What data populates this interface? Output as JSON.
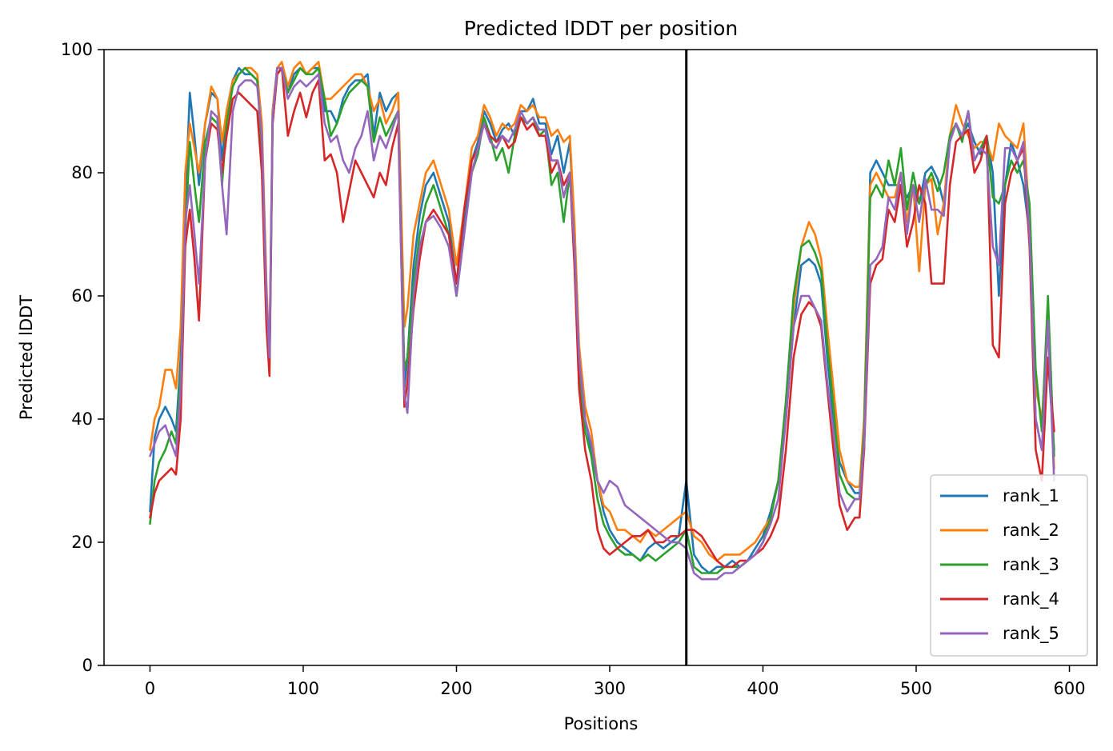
{
  "chart_data": {
    "type": "line",
    "title": "Predicted lDDT per position",
    "xlabel": "Positions",
    "ylabel": "Predicted lDDT",
    "xlim": [
      -30,
      618
    ],
    "ylim": [
      0,
      100
    ],
    "xticks": [
      "0",
      "100",
      "200",
      "300",
      "400",
      "500",
      "600"
    ],
    "yticks": [
      "0",
      "20",
      "40",
      "60",
      "80",
      "100"
    ],
    "grid": false,
    "legend_position": "lower-right",
    "vline_x": 350,
    "x_knots": [
      0,
      3,
      6,
      10,
      14,
      17,
      20,
      23,
      26,
      29,
      32,
      36,
      40,
      44,
      47,
      50,
      54,
      58,
      62,
      66,
      70,
      73,
      76,
      78,
      80,
      83,
      86,
      90,
      94,
      98,
      102,
      106,
      110,
      114,
      118,
      122,
      126,
      130,
      134,
      138,
      142,
      146,
      150,
      154,
      158,
      162,
      164,
      166,
      168,
      172,
      176,
      180,
      185,
      190,
      195,
      200,
      205,
      210,
      214,
      218,
      222,
      226,
      230,
      234,
      238,
      242,
      246,
      250,
      254,
      258,
      262,
      266,
      270,
      274,
      277,
      280,
      284,
      288,
      292,
      296,
      300,
      305,
      310,
      315,
      320,
      325,
      330,
      335,
      340,
      345,
      350,
      355,
      360,
      365,
      370,
      375,
      380,
      385,
      390,
      395,
      400,
      405,
      410,
      415,
      420,
      425,
      430,
      434,
      438,
      442,
      446,
      450,
      455,
      460,
      463,
      466,
      470,
      474,
      478,
      482,
      486,
      490,
      494,
      498,
      502,
      506,
      510,
      514,
      518,
      522,
      526,
      530,
      534,
      538,
      542,
      546,
      550,
      554,
      558,
      562,
      566,
      570,
      574,
      578,
      582,
      586,
      590
    ],
    "series": [
      {
        "name": "rank_1",
        "color": "#1f77b4",
        "values": [
          25,
          37,
          40,
          42,
          40,
          38,
          50,
          75,
          93,
          86,
          78,
          88,
          93,
          92,
          82,
          90,
          95,
          97,
          96,
          96,
          95,
          85,
          60,
          50,
          90,
          97,
          97,
          93,
          96,
          97,
          96,
          97,
          97,
          90,
          90,
          88,
          92,
          94,
          95,
          95,
          96,
          86,
          93,
          90,
          92,
          93,
          70,
          45,
          50,
          65,
          73,
          78,
          80,
          76,
          72,
          62,
          72,
          82,
          85,
          90,
          88,
          85,
          87,
          88,
          86,
          90,
          90,
          92,
          88,
          88,
          83,
          86,
          80,
          85,
          70,
          50,
          40,
          35,
          30,
          25,
          22,
          20,
          19,
          18,
          17,
          19,
          20,
          19,
          20,
          21,
          30,
          18,
          16,
          15,
          16,
          16,
          17,
          16,
          17,
          19,
          21,
          25,
          30,
          40,
          55,
          65,
          66,
          65,
          62,
          50,
          40,
          33,
          30,
          28,
          28,
          35,
          80,
          82,
          80,
          78,
          78,
          78,
          76,
          78,
          75,
          80,
          81,
          79,
          75,
          85,
          88,
          86,
          88,
          85,
          83,
          86,
          80,
          60,
          78,
          85,
          82,
          78,
          70,
          40,
          35,
          50,
          35
        ]
      },
      {
        "name": "rank_2",
        "color": "#ff7f0e",
        "values": [
          35,
          40,
          42,
          48,
          48,
          45,
          55,
          80,
          88,
          84,
          80,
          88,
          94,
          92,
          85,
          90,
          95,
          96,
          97,
          97,
          96,
          88,
          62,
          50,
          90,
          97,
          98,
          94,
          97,
          98,
          96,
          97,
          98,
          92,
          92,
          93,
          94,
          95,
          96,
          96,
          94,
          90,
          92,
          88,
          90,
          93,
          74,
          55,
          58,
          70,
          75,
          80,
          82,
          78,
          74,
          65,
          74,
          84,
          86,
          91,
          89,
          86,
          88,
          87,
          88,
          91,
          90,
          91,
          89,
          89,
          86,
          87,
          85,
          86,
          72,
          52,
          42,
          38,
          30,
          26,
          25,
          22,
          22,
          21,
          20,
          22,
          21,
          22,
          23,
          24,
          25,
          21,
          20,
          18,
          17,
          18,
          18,
          18,
          19,
          20,
          22,
          24,
          30,
          42,
          58,
          68,
          72,
          70,
          66,
          55,
          45,
          35,
          30,
          29,
          29,
          40,
          78,
          80,
          78,
          76,
          76,
          80,
          72,
          78,
          64,
          78,
          79,
          70,
          75,
          86,
          91,
          88,
          86,
          84,
          85,
          85,
          82,
          88,
          86,
          85,
          84,
          88,
          72,
          45,
          40,
          55,
          32
        ]
      },
      {
        "name": "rank_3",
        "color": "#2ca02c",
        "values": [
          23,
          30,
          33,
          35,
          38,
          36,
          48,
          70,
          85,
          78,
          72,
          85,
          89,
          88,
          78,
          88,
          94,
          96,
          97,
          96,
          95,
          84,
          58,
          48,
          88,
          96,
          97,
          93,
          95,
          97,
          96,
          96,
          97,
          92,
          86,
          88,
          91,
          93,
          94,
          95,
          94,
          85,
          89,
          86,
          88,
          90,
          68,
          48,
          50,
          62,
          70,
          75,
          78,
          74,
          70,
          60,
          70,
          80,
          83,
          89,
          86,
          82,
          84,
          80,
          86,
          89,
          88,
          89,
          86,
          87,
          78,
          80,
          72,
          80,
          68,
          48,
          38,
          34,
          27,
          23,
          21,
          19,
          18,
          18,
          17,
          18,
          17,
          18,
          19,
          20,
          22,
          16,
          15,
          15,
          15,
          16,
          16,
          16,
          17,
          18,
          20,
          24,
          30,
          43,
          60,
          68,
          69,
          67,
          64,
          52,
          42,
          31,
          28,
          27,
          27,
          38,
          76,
          78,
          76,
          82,
          78,
          84,
          74,
          80,
          75,
          78,
          80,
          77,
          80,
          86,
          88,
          85,
          90,
          82,
          84,
          86,
          76,
          75,
          78,
          82,
          80,
          82,
          75,
          48,
          38,
          60,
          34
        ]
      },
      {
        "name": "rank_4",
        "color": "#d62728",
        "values": [
          24,
          28,
          30,
          31,
          32,
          31,
          40,
          68,
          74,
          66,
          56,
          82,
          88,
          87,
          80,
          86,
          92,
          93,
          92,
          91,
          90,
          80,
          55,
          47,
          88,
          96,
          97,
          86,
          90,
          93,
          89,
          93,
          95,
          82,
          83,
          80,
          72,
          77,
          82,
          80,
          78,
          76,
          80,
          78,
          84,
          88,
          66,
          42,
          46,
          58,
          66,
          72,
          74,
          72,
          70,
          62,
          74,
          82,
          84,
          88,
          86,
          85,
          86,
          84,
          85,
          89,
          87,
          88,
          86,
          86,
          80,
          82,
          78,
          80,
          65,
          45,
          35,
          30,
          22,
          19,
          18,
          19,
          20,
          21,
          21,
          22,
          20,
          20,
          21,
          21,
          22,
          22,
          21,
          19,
          17,
          16,
          16,
          17,
          17,
          18,
          19,
          21,
          24,
          35,
          50,
          57,
          59,
          58,
          55,
          45,
          35,
          26,
          22,
          24,
          24,
          35,
          62,
          65,
          66,
          74,
          72,
          78,
          68,
          72,
          78,
          75,
          62,
          62,
          62,
          78,
          85,
          86,
          87,
          80,
          82,
          86,
          52,
          50,
          75,
          80,
          82,
          84,
          68,
          35,
          30,
          50,
          38
        ]
      },
      {
        "name": "rank_5",
        "color": "#9467bd",
        "values": [
          34,
          36,
          38,
          39,
          36,
          34,
          45,
          72,
          78,
          70,
          62,
          82,
          90,
          89,
          78,
          70,
          90,
          94,
          95,
          95,
          94,
          86,
          60,
          50,
          89,
          97,
          97,
          92,
          94,
          95,
          94,
          95,
          96,
          88,
          85,
          86,
          82,
          80,
          84,
          86,
          90,
          82,
          86,
          84,
          87,
          90,
          66,
          44,
          41,
          60,
          68,
          72,
          73,
          71,
          68,
          60,
          70,
          80,
          84,
          88,
          85,
          84,
          86,
          85,
          87,
          90,
          88,
          89,
          87,
          87,
          82,
          82,
          76,
          80,
          68,
          50,
          40,
          36,
          30,
          28,
          30,
          29,
          26,
          25,
          24,
          23,
          22,
          21,
          20,
          20,
          19,
          15,
          14,
          14,
          14,
          15,
          15,
          16,
          17,
          18,
          20,
          23,
          27,
          40,
          55,
          60,
          60,
          58,
          56,
          46,
          38,
          28,
          25,
          27,
          27,
          36,
          65,
          66,
          68,
          76,
          74,
          80,
          70,
          78,
          72,
          79,
          74,
          74,
          73,
          85,
          88,
          86,
          90,
          82,
          84,
          83,
          68,
          65,
          84,
          84,
          82,
          85,
          70,
          40,
          35,
          56,
          30
        ]
      }
    ]
  }
}
